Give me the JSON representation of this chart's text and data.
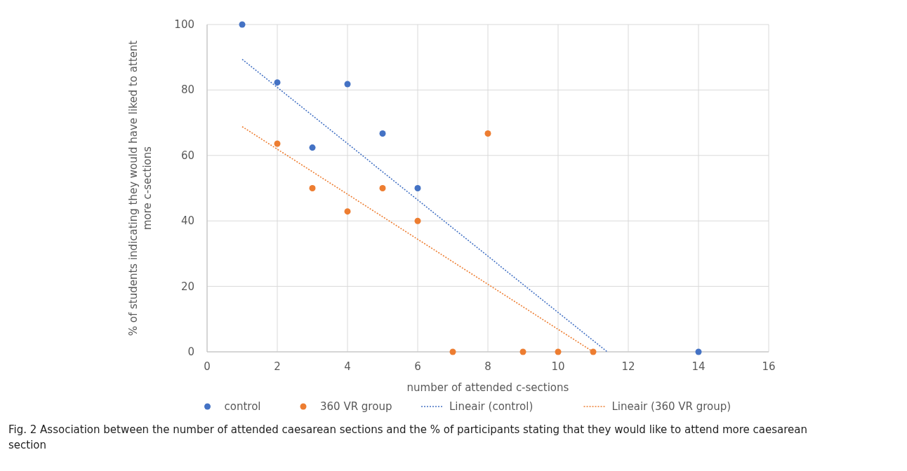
{
  "chart_data": {
    "type": "scatter",
    "xlabel": "number of attended c-sections",
    "ylabel": "% of students indicating they would have liked to attent more c-sections",
    "xlim": [
      0,
      16
    ],
    "xticks": [
      0,
      2,
      4,
      6,
      8,
      10,
      12,
      14,
      16
    ],
    "ylim": [
      0,
      100
    ],
    "yticks": [
      0,
      20,
      40,
      60,
      80,
      100
    ],
    "grid": true,
    "legend": "bottom",
    "marker": "circle",
    "series": [
      {
        "name": "control",
        "color": "#4472c4",
        "x": [
          1,
          2,
          3,
          4,
          5,
          6,
          14
        ],
        "values": [
          100,
          82.3,
          62.4,
          81.8,
          66.7,
          50,
          0
        ]
      },
      {
        "name": "360 VR group",
        "color": "#ed7d31",
        "x": [
          2,
          3,
          4,
          5,
          6,
          7,
          8,
          9,
          10,
          11
        ],
        "values": [
          63.6,
          50,
          42.9,
          50,
          40,
          0,
          66.7,
          0,
          0,
          0
        ]
      },
      {
        "name": "Lineair (control)",
        "type": "line",
        "marker": "none",
        "line_style": "dotted",
        "color": "#4472c4",
        "x": [
          1,
          11.4
        ],
        "values": [
          89.4,
          0
        ]
      },
      {
        "name": "Lineair (360 VR group)",
        "type": "line",
        "marker": "none",
        "line_style": "dotted",
        "color": "#ed7d31",
        "x": [
          1,
          11
        ],
        "values": [
          68.8,
          0
        ]
      }
    ],
    "annotations": [
      "Fig. 2 Association between the number of attended caesarean sections and the % of participants stating that they would like to attend more caesarean section"
    ]
  }
}
